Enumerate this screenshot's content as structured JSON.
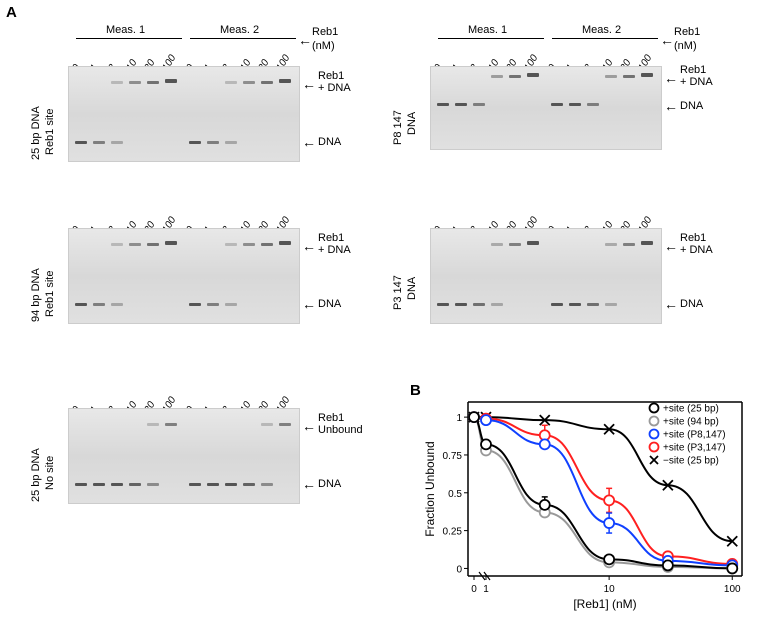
{
  "panelA": "A",
  "panelB": "B",
  "concentrations": [
    "0",
    "1",
    "3",
    "10",
    "30",
    "100",
    "0",
    "1",
    "3",
    "10",
    "30",
    "100"
  ],
  "meas1": "Meas. 1",
  "meas2": "Meas. 2",
  "reb1_label": "Reb1",
  "nm_label": "(nM)",
  "reb1_dna_label1": "Reb1",
  "reb1_dna_label2": "+ DNA",
  "dna_label": "DNA",
  "reb1_unbound_label1": "Reb1",
  "reb1_unbound_label2": "Unbound",
  "gels": {
    "g1": {
      "row1": "25 bp DNA",
      "row2": "Reb1 site"
    },
    "g2": {
      "row1": "P8 147",
      "row2": "DNA"
    },
    "g3": {
      "row1": "94 bp DNA",
      "row2": "Reb1 site"
    },
    "g4": {
      "row1": "P3 147",
      "row2": "DNA"
    },
    "g5": {
      "row1": "25 bp DNA",
      "row2": "No site"
    }
  },
  "chart": {
    "xlabel": "[Reb1] (nM)",
    "ylabel": "Fraction Unbound",
    "xticks": [
      "0",
      "1",
      "10",
      "100"
    ],
    "yticks": [
      "0",
      "0.25",
      "0.5",
      "0.75",
      "1"
    ],
    "xlim": [
      0.7,
      120
    ],
    "ylim": [
      -0.05,
      1.1
    ],
    "legend": [
      {
        "label": "+site (25 bp)",
        "color": "#000000",
        "marker": "o"
      },
      {
        "label": "+site (94 bp)",
        "color": "#999999",
        "marker": "o"
      },
      {
        "label": "+site (P8,147)",
        "color": "#1040ff",
        "marker": "o"
      },
      {
        "label": "+site (P3,147)",
        "color": "#ff2020",
        "marker": "o"
      },
      {
        "label": "−site (25 bp)",
        "color": "#000000",
        "marker": "x"
      }
    ],
    "series": {
      "black_o": {
        "x": [
          0,
          1,
          3,
          10,
          30,
          100
        ],
        "y": [
          1.0,
          0.82,
          0.42,
          0.06,
          0.02,
          0.0
        ],
        "color": "#000000"
      },
      "grey_o": {
        "x": [
          0,
          1,
          3,
          10,
          30,
          100
        ],
        "y": [
          1.0,
          0.78,
          0.37,
          0.04,
          0.01,
          0.0
        ],
        "color": "#999999"
      },
      "blue_o": {
        "x": [
          0,
          1,
          3,
          10,
          30,
          100
        ],
        "y": [
          1.0,
          0.98,
          0.82,
          0.3,
          0.05,
          0.02
        ],
        "color": "#1040ff"
      },
      "red_o": {
        "x": [
          0,
          1,
          3,
          10,
          30,
          100
        ],
        "y": [
          1.0,
          0.99,
          0.88,
          0.45,
          0.08,
          0.03
        ],
        "color": "#ff2020"
      },
      "black_x": {
        "x": [
          0,
          1,
          3,
          10,
          30,
          100
        ],
        "y": [
          1.0,
          1.0,
          0.98,
          0.92,
          0.55,
          0.18
        ],
        "color": "#000000"
      }
    },
    "background_color": "#ffffff",
    "axis_color": "#000000",
    "line_width": 2,
    "marker_size": 5
  }
}
